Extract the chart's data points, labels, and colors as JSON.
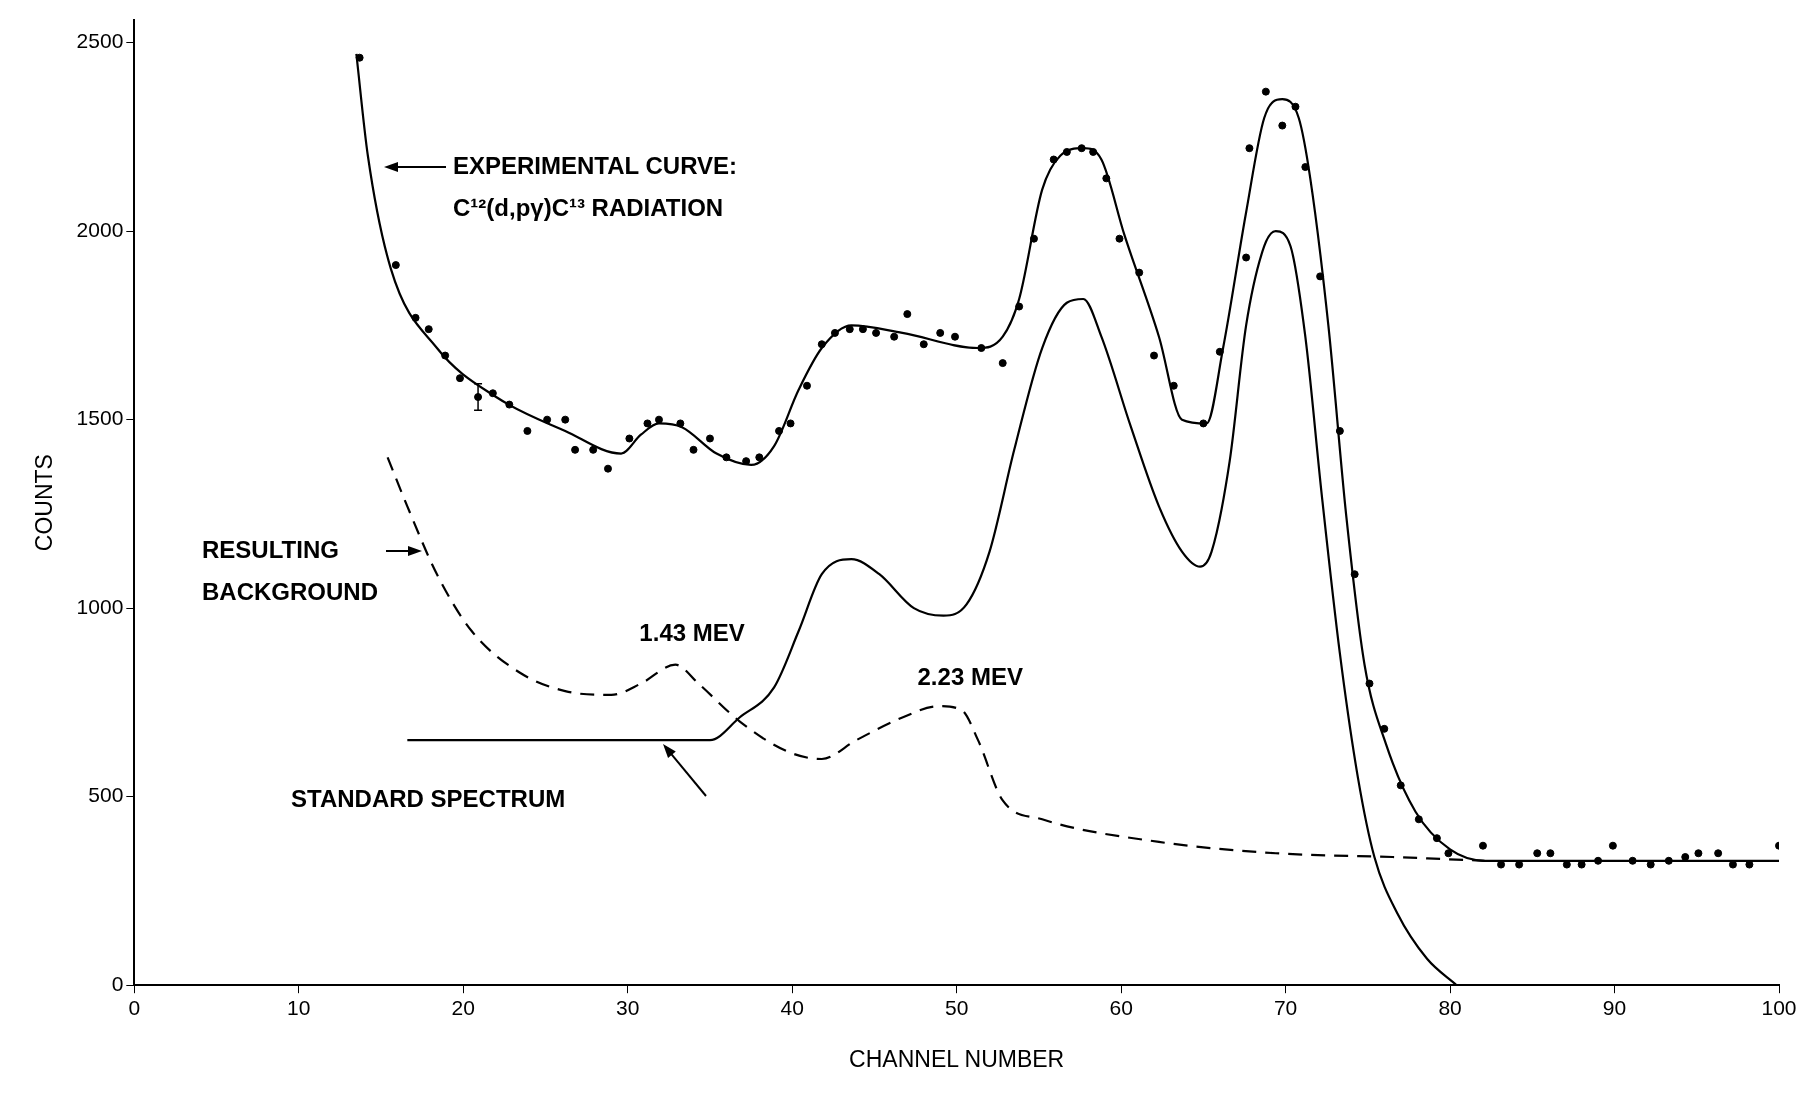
{
  "chart_data": {
    "type": "line",
    "xlabel": "CHANNEL NUMBER",
    "ylabel": "COUNTS",
    "xlim": [
      0,
      100
    ],
    "ylim": [
      0,
      2560
    ],
    "xticks": [
      0,
      10,
      20,
      30,
      40,
      50,
      60,
      70,
      80,
      90,
      100
    ],
    "yticks": [
      0,
      500,
      1000,
      1500,
      2000,
      2500
    ],
    "marker": "none",
    "series": [
      {
        "type": "scatter",
        "marker": "circle",
        "color": "#000000",
        "x": [
          13.7,
          15.9,
          17.1,
          17.9,
          18.9,
          19.8,
          20.9,
          21.8,
          22.8,
          23.9,
          25.1,
          26.2,
          26.8,
          27.9,
          28.8,
          30.1,
          31.2,
          31.9,
          33.2,
          34.0,
          35.0,
          36.0,
          37.2,
          38.0,
          39.2,
          39.9,
          40.9,
          41.8,
          42.6,
          43.5,
          44.3,
          45.1,
          46.2,
          47.0,
          48.0,
          49.0,
          49.9,
          51.5,
          52.8,
          53.8,
          54.7,
          55.9,
          56.7,
          57.6,
          58.3,
          59.1,
          59.9,
          61.1,
          62.0,
          63.2,
          65.0,
          66.0,
          67.6,
          67.8,
          68.8,
          69.8,
          70.6,
          71.2,
          72.1,
          73.3,
          74.2,
          75.1,
          76.0,
          77.0,
          78.1,
          79.2,
          79.9,
          82.0,
          83.1,
          84.2,
          85.3,
          86.1,
          87.1,
          88.0,
          89.0,
          89.9,
          91.1,
          92.2,
          93.3,
          94.3,
          95.1,
          96.3,
          97.2,
          98.2,
          100
        ],
        "values": [
          2460,
          1910,
          1770,
          1740,
          1670,
          1610,
          1560,
          1570,
          1540,
          1470,
          1500,
          1500,
          1420,
          1420,
          1370,
          1450,
          1490,
          1500,
          1490,
          1420,
          1450,
          1400,
          1390,
          1400,
          1470,
          1490,
          1590,
          1700,
          1730,
          1740,
          1740,
          1730,
          1720,
          1780,
          1700,
          1730,
          1720,
          1690,
          1650,
          1800,
          1980,
          2190,
          2210,
          2220,
          2210,
          2140,
          1980,
          1890,
          1670,
          1590,
          1490,
          1680,
          1930,
          2220,
          2370,
          2280,
          2330,
          2170,
          1880,
          1470,
          1090,
          800,
          680,
          530,
          440,
          390,
          350,
          370,
          320,
          320,
          350,
          350,
          320,
          320,
          330,
          370,
          330,
          320,
          330,
          340,
          350,
          350,
          320,
          320,
          370
        ],
        "errors": [
          null,
          null,
          null,
          null,
          null,
          null,
          35,
          null,
          null,
          null,
          null,
          null,
          null,
          null,
          null,
          null,
          null,
          null,
          null,
          null,
          null,
          null,
          null,
          null,
          null,
          null,
          null,
          null,
          null,
          null,
          null,
          null,
          null,
          null,
          null,
          null,
          null,
          null,
          null,
          null,
          null,
          null,
          null,
          null,
          null,
          null,
          null,
          null,
          null,
          null,
          null,
          null,
          null,
          null,
          null,
          null,
          null,
          null,
          null,
          null,
          null,
          null,
          null,
          null,
          null,
          null,
          null,
          null,
          null,
          null,
          null,
          null,
          null,
          null,
          null,
          null,
          null,
          null,
          null,
          null,
          null,
          null,
          null,
          null,
          null
        ]
      },
      {
        "color": "#000000",
        "line_style": "solid",
        "x": [
          13.5,
          14.2,
          15.6,
          18.4,
          22,
          26.2,
          29.6,
          30.8,
          31.9,
          33.3,
          35.4,
          37.5,
          38.9,
          40.4,
          41.8,
          43.6,
          46.7,
          51.3,
          52.8,
          53.8,
          55.2,
          56.3,
          57.7,
          58.8,
          60.2,
          62.3,
          63.7,
          65.2,
          66.2,
          67.6,
          68.7,
          69.8,
          70.8,
          71.5,
          72.6,
          73.7,
          74.8,
          76.1,
          77.9,
          80,
          82.1,
          100
        ],
        "values": [
          2470,
          2200,
          1900,
          1690,
          1560,
          1470,
          1410,
          1460,
          1490,
          1480,
          1410,
          1380,
          1430,
          1580,
          1690,
          1750,
          1730,
          1690,
          1720,
          1820,
          2110,
          2200,
          2220,
          2190,
          1990,
          1720,
          1500,
          1490,
          1690,
          2050,
          2300,
          2350,
          2300,
          2140,
          1750,
          1240,
          850,
          640,
          460,
          360,
          330,
          330
        ]
      },
      {
        "color": "#000000",
        "line_style": "solid",
        "x": [
          16.6,
          35,
          36.8,
          38.9,
          40.4,
          41.8,
          43.6,
          45.3,
          47.4,
          49.2,
          50.6,
          52,
          53.5,
          55.2,
          56.7,
          57.7,
          58.8,
          60.6,
          62.3,
          63.7,
          64.8,
          65.5,
          66.6,
          67.6,
          68.7,
          69.4,
          70.3,
          71.2,
          72.2,
          73.3,
          74.4,
          75.4,
          76.8,
          78.6,
          80.4
        ],
        "values": [
          650,
          650,
          710,
          790,
          940,
          1090,
          1130,
          1090,
          1000,
          980,
          1010,
          1150,
          1420,
          1690,
          1810,
          1820,
          1720,
          1480,
          1270,
          1150,
          1110,
          1150,
          1390,
          1750,
          1960,
          2000,
          1960,
          1720,
          1300,
          880,
          550,
          340,
          190,
          70,
          0
        ]
      },
      {
        "color": "#000000",
        "line_style": "dashed",
        "x": [
          15.4,
          16.6,
          18.4,
          20.5,
          23.4,
          26.2,
          29,
          30.8,
          32.9,
          34.3,
          36.8,
          39.7,
          41.8,
          43.9,
          46.7,
          48.9,
          50.3,
          51.3,
          52.8,
          55.2,
          62.3,
          69.4,
          76.5,
          82.1
        ],
        "values": [
          1400,
          1270,
          1090,
          940,
          830,
          780,
          770,
          800,
          850,
          800,
          700,
          620,
          600,
          650,
          710,
          740,
          730,
          650,
          490,
          440,
          380,
          350,
          340,
          330
        ]
      }
    ],
    "annotations": [
      "EXPERIMENTAL CURVE:\nC¹²(d,pγ)C¹³ RADIATION",
      "RESULTING\nBACKGROUND",
      {
        "text": "1.43 MEV",
        "x": 33,
        "y": 850
      },
      {
        "text": "2.23 MEV",
        "x": 49,
        "y": 740
      },
      "STANDARD SPECTRUM"
    ]
  }
}
